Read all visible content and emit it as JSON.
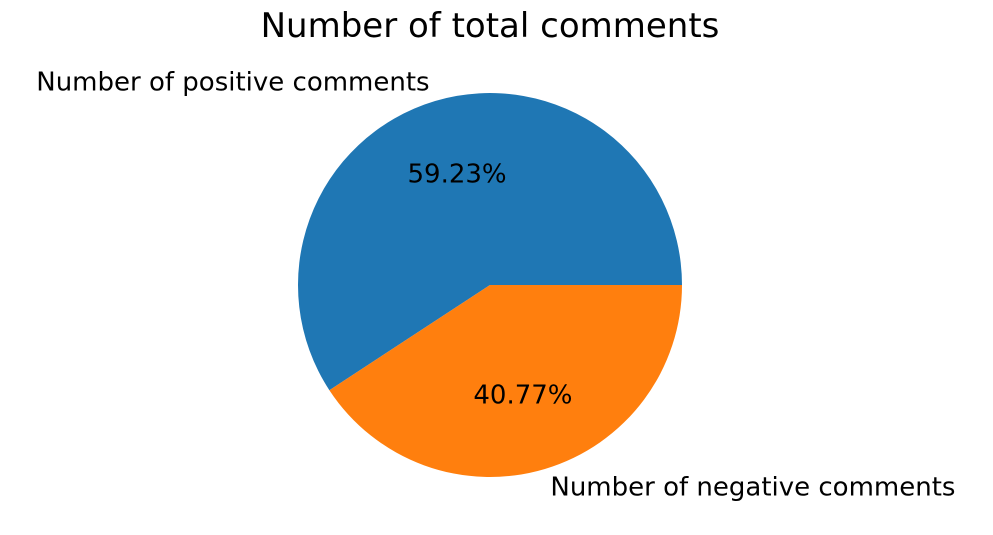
{
  "chart_data": {
    "type": "pie",
    "title": "Number of total comments",
    "slices": [
      {
        "label": "Number of positive comments",
        "percent": 59.23,
        "percent_label": "59.23%",
        "color": "#1f77b4"
      },
      {
        "label": "Number of negative comments",
        "percent": 40.77,
        "percent_label": "40.77%",
        "color": "#ff7f0e"
      }
    ],
    "start_angle_deg": 0,
    "direction": "counterclockwise"
  }
}
